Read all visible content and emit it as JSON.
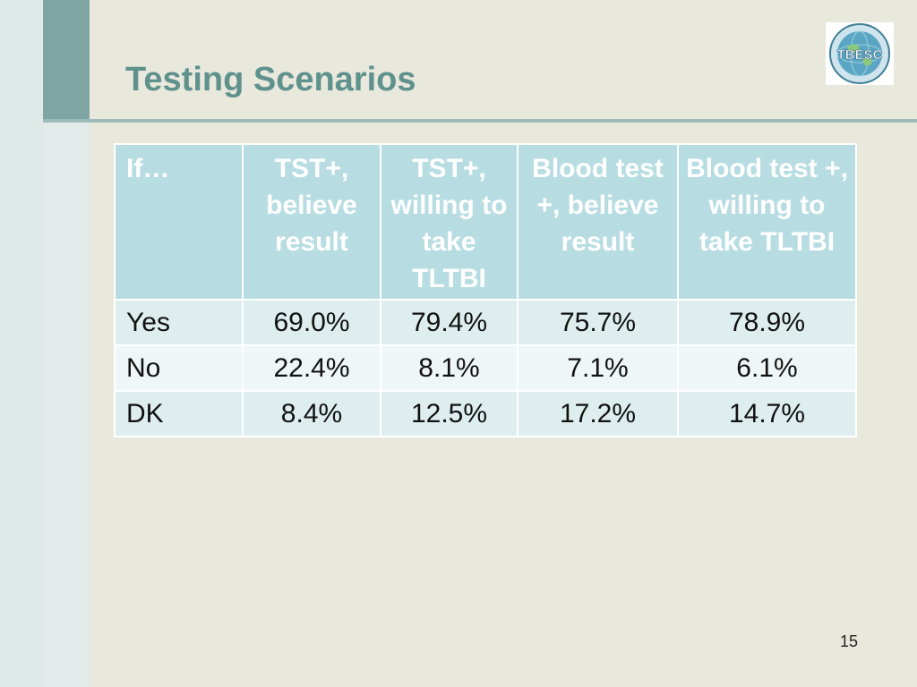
{
  "slide": {
    "title": "Testing Scenarios",
    "page_number": "15"
  },
  "logo": {
    "text": "TBESC",
    "icon": "globe-logo-icon"
  },
  "table": {
    "headers": [
      "If…",
      "TST+, believe result",
      "TST+, willing to take TLTBI",
      "Blood test +, believe result",
      "Blood test +, willing to take TLTBI"
    ],
    "rows": [
      [
        "Yes",
        "69.0%",
        "79.4%",
        "75.7%",
        "78.9%"
      ],
      [
        "No",
        "22.4%",
        "8.1%",
        "7.1%",
        "6.1%"
      ],
      [
        "DK",
        "8.4%",
        "12.5%",
        "17.2%",
        "14.7%"
      ]
    ]
  },
  "colors": {
    "header_fill": "#b7dde2",
    "title_color": "#5f918d",
    "accent_bar": "#7fa6a3"
  }
}
